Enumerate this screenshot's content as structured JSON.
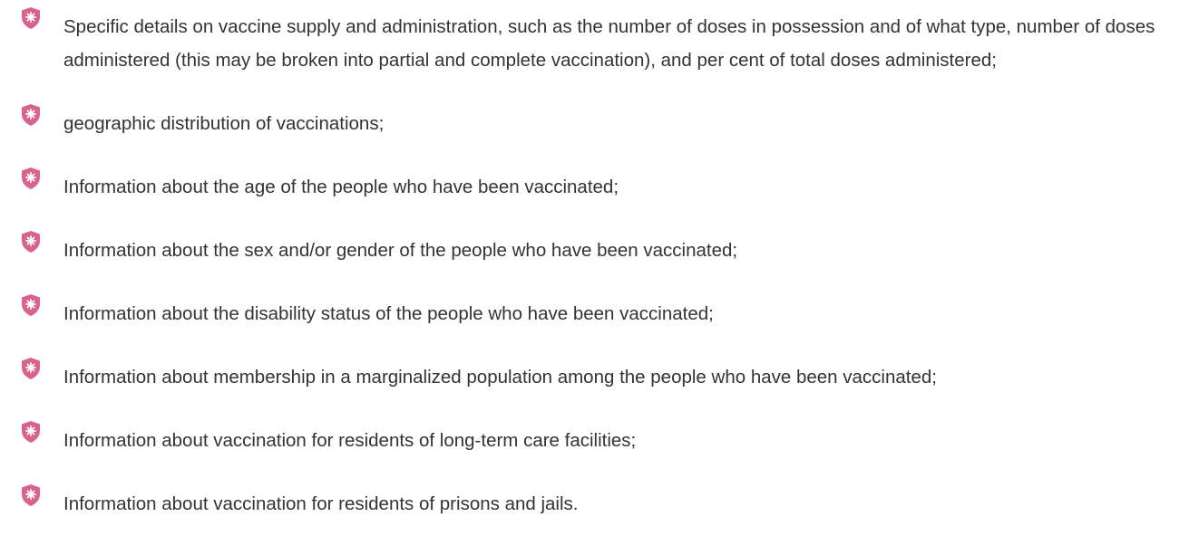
{
  "list": {
    "items": [
      "Specific details on vaccine supply and administration, such as the number of doses in possession and of what type, number of doses administered (this may be broken into partial and complete vaccination), and per cent of total doses administered;",
      "geographic distribution of vaccinations;",
      "Information about the age of the people who have been vaccinated;",
      "Information about the sex and/or gender of the people who have been vaccinated;",
      "Information about the disability status of the people who have been vaccinated;",
      "Information about membership in a marginalized population among the people who have been vaccinated;",
      "Information about vaccination for residents of long-term care facilities;",
      "Information about vaccination for residents of prisons and jails."
    ]
  }
}
